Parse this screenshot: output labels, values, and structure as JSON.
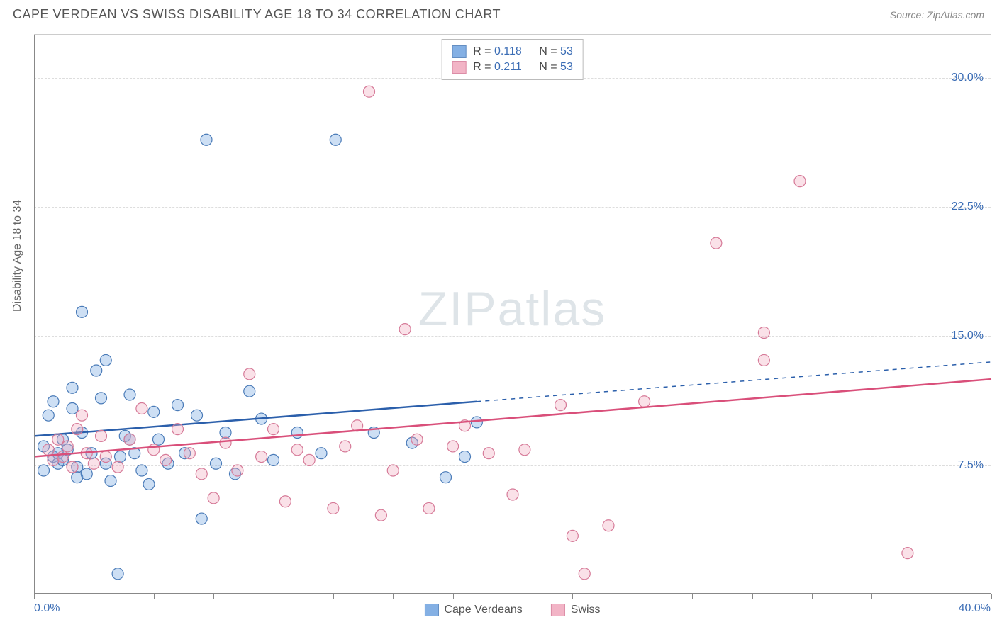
{
  "title": "CAPE VERDEAN VS SWISS DISABILITY AGE 18 TO 34 CORRELATION CHART",
  "source": "Source: ZipAtlas.com",
  "y_axis_label": "Disability Age 18 to 34",
  "watermark_a": "ZIP",
  "watermark_b": "atlas",
  "chart": {
    "type": "scatter",
    "xlim": [
      0,
      40
    ],
    "ylim": [
      0,
      32.5
    ],
    "x_ticks_minor": [
      0,
      2.5,
      5,
      7.5,
      10,
      12.5,
      15,
      17.5,
      20,
      22.5,
      25,
      27.5,
      30,
      32.5,
      35,
      37.5,
      40
    ],
    "x_label_min": "0.0%",
    "x_label_max": "40.0%",
    "y_ticks": [
      {
        "v": 7.5,
        "label": "7.5%"
      },
      {
        "v": 15.0,
        "label": "15.0%"
      },
      {
        "v": 22.5,
        "label": "22.5%"
      },
      {
        "v": 30.0,
        "label": "30.0%"
      }
    ],
    "background_color": "#ffffff",
    "grid_color": "#dddddd",
    "axis_color": "#888888",
    "tick_label_color": "#3b6db5",
    "marker_radius": 8,
    "marker_stroke_width": 1.2,
    "marker_fill_opacity": 0.35,
    "trend_line_width": 2.5,
    "series": [
      {
        "key": "cape_verdeans",
        "label": "Cape Verdeans",
        "color": "#6fa3e0",
        "stroke": "#4a7bb8",
        "line_color": "#2b5fab",
        "r_label": "R = ",
        "r_value": "0.118",
        "n_label": "N = ",
        "n_value": "53",
        "trend": {
          "x1": 0,
          "y1": 9.2,
          "x2_solid": 18.5,
          "y2_solid": 11.2,
          "x2": 40,
          "y2": 13.5
        },
        "points": [
          [
            0.4,
            8.6
          ],
          [
            0.4,
            7.2
          ],
          [
            0.6,
            10.4
          ],
          [
            0.8,
            8.0
          ],
          [
            0.8,
            11.2
          ],
          [
            1.0,
            8.2
          ],
          [
            1.0,
            7.6
          ],
          [
            1.2,
            9.0
          ],
          [
            1.2,
            7.8
          ],
          [
            1.4,
            8.4
          ],
          [
            1.6,
            12.0
          ],
          [
            1.6,
            10.8
          ],
          [
            1.8,
            7.4
          ],
          [
            1.8,
            6.8
          ],
          [
            2.0,
            9.4
          ],
          [
            2.0,
            16.4
          ],
          [
            2.2,
            7.0
          ],
          [
            2.4,
            8.2
          ],
          [
            2.6,
            13.0
          ],
          [
            2.8,
            11.4
          ],
          [
            3.0,
            13.6
          ],
          [
            3.0,
            7.6
          ],
          [
            3.2,
            6.6
          ],
          [
            3.5,
            1.2
          ],
          [
            3.6,
            8.0
          ],
          [
            3.8,
            9.2
          ],
          [
            4.0,
            11.6
          ],
          [
            4.0,
            9.0
          ],
          [
            4.2,
            8.2
          ],
          [
            4.5,
            7.2
          ],
          [
            4.8,
            6.4
          ],
          [
            5.0,
            10.6
          ],
          [
            5.2,
            9.0
          ],
          [
            5.6,
            7.6
          ],
          [
            6.0,
            11.0
          ],
          [
            6.3,
            8.2
          ],
          [
            6.8,
            10.4
          ],
          [
            7.0,
            4.4
          ],
          [
            7.2,
            26.4
          ],
          [
            7.6,
            7.6
          ],
          [
            8.0,
            9.4
          ],
          [
            8.4,
            7.0
          ],
          [
            9.0,
            11.8
          ],
          [
            9.5,
            10.2
          ],
          [
            10.0,
            7.8
          ],
          [
            11.0,
            9.4
          ],
          [
            12.0,
            8.2
          ],
          [
            12.6,
            26.4
          ],
          [
            14.2,
            9.4
          ],
          [
            15.8,
            8.8
          ],
          [
            17.2,
            6.8
          ],
          [
            18.0,
            8.0
          ],
          [
            18.5,
            10.0
          ]
        ]
      },
      {
        "key": "swiss",
        "label": "Swiss",
        "color": "#f0a8bd",
        "stroke": "#d67a98",
        "line_color": "#d94f7a",
        "r_label": "R = ",
        "r_value": "0.211",
        "n_label": "N = ",
        "n_value": "53",
        "trend": {
          "x1": 0,
          "y1": 8.0,
          "x2_solid": 40,
          "y2_solid": 12.5,
          "x2": 40,
          "y2": 12.5
        },
        "points": [
          [
            0.6,
            8.4
          ],
          [
            0.8,
            7.8
          ],
          [
            1.0,
            9.0
          ],
          [
            1.2,
            8.0
          ],
          [
            1.4,
            8.6
          ],
          [
            1.6,
            7.4
          ],
          [
            1.8,
            9.6
          ],
          [
            2.0,
            10.4
          ],
          [
            2.2,
            8.2
          ],
          [
            2.5,
            7.6
          ],
          [
            2.8,
            9.2
          ],
          [
            3.0,
            8.0
          ],
          [
            3.5,
            7.4
          ],
          [
            4.0,
            9.0
          ],
          [
            4.5,
            10.8
          ],
          [
            5.0,
            8.4
          ],
          [
            5.5,
            7.8
          ],
          [
            6.0,
            9.6
          ],
          [
            6.5,
            8.2
          ],
          [
            7.0,
            7.0
          ],
          [
            7.5,
            5.6
          ],
          [
            8.0,
            8.8
          ],
          [
            8.5,
            7.2
          ],
          [
            9.0,
            12.8
          ],
          [
            9.5,
            8.0
          ],
          [
            10.0,
            9.6
          ],
          [
            10.5,
            5.4
          ],
          [
            11.0,
            8.4
          ],
          [
            11.5,
            7.8
          ],
          [
            12.5,
            5.0
          ],
          [
            13.0,
            8.6
          ],
          [
            13.5,
            9.8
          ],
          [
            14.0,
            29.2
          ],
          [
            14.5,
            4.6
          ],
          [
            15.0,
            7.2
          ],
          [
            15.5,
            15.4
          ],
          [
            16.0,
            9.0
          ],
          [
            16.5,
            5.0
          ],
          [
            17.5,
            8.6
          ],
          [
            18.0,
            9.8
          ],
          [
            19.0,
            8.2
          ],
          [
            20.0,
            5.8
          ],
          [
            20.5,
            8.4
          ],
          [
            22.0,
            11.0
          ],
          [
            22.5,
            3.4
          ],
          [
            23.0,
            1.2
          ],
          [
            24.0,
            4.0
          ],
          [
            25.5,
            11.2
          ],
          [
            28.5,
            20.4
          ],
          [
            30.5,
            15.2
          ],
          [
            30.5,
            13.6
          ],
          [
            32.0,
            24.0
          ],
          [
            36.5,
            2.4
          ]
        ]
      }
    ]
  }
}
